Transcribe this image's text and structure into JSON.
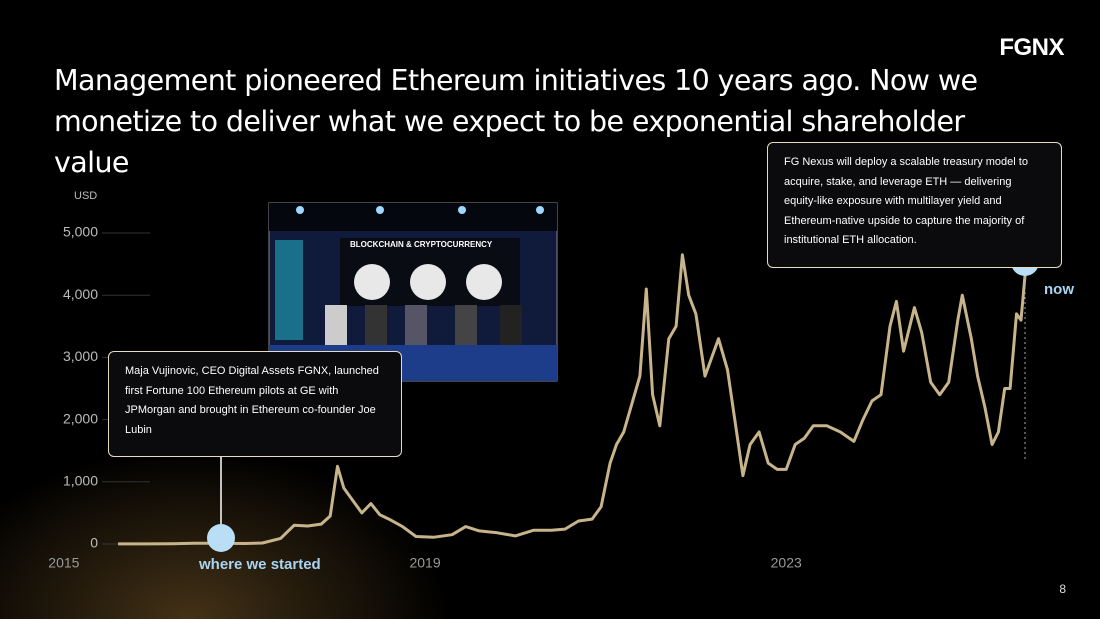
{
  "logo": "FGNX",
  "page_number": "8",
  "chart_data": {
    "type": "line",
    "title": "Management pioneered Ethereum initiatives 10 years ago. Now we monetize to deliver what we expect to be exponential shareholder value",
    "y_axis_label": "USD",
    "x": [
      2015.6,
      2015.9,
      2016.2,
      2016.45,
      2016.7,
      2017.0,
      2017.2,
      2017.4,
      2017.55,
      2017.7,
      2017.85,
      2017.95,
      2018.03,
      2018.1,
      2018.2,
      2018.3,
      2018.4,
      2018.5,
      2018.6,
      2018.75,
      2018.9,
      2019.1,
      2019.3,
      2019.45,
      2019.6,
      2019.8,
      2020.0,
      2020.2,
      2020.4,
      2020.55,
      2020.7,
      2020.85,
      2020.95,
      2021.05,
      2021.12,
      2021.2,
      2021.3,
      2021.38,
      2021.45,
      2021.52,
      2021.6,
      2021.7,
      2021.78,
      2021.85,
      2021.92,
      2022.0,
      2022.1,
      2022.25,
      2022.35,
      2022.45,
      2022.52,
      2022.6,
      2022.7,
      2022.8,
      2022.9,
      2023.0,
      2023.1,
      2023.2,
      2023.3,
      2023.45,
      2023.6,
      2023.75,
      2023.85,
      2023.95,
      2024.05,
      2024.15,
      2024.22,
      2024.3,
      2024.42,
      2024.5,
      2024.6,
      2024.7,
      2024.8,
      2024.9,
      2024.95,
      2025.05,
      2025.12,
      2025.2,
      2025.28,
      2025.35,
      2025.42,
      2025.48,
      2025.55,
      2025.6,
      2025.65
    ],
    "series": [
      {
        "name": "ETH",
        "color": "#c8b48a",
        "values": [
          1,
          1,
          5,
          13,
          12,
          8,
          16,
          90,
          300,
          290,
          320,
          450,
          1250,
          900,
          700,
          500,
          650,
          470,
          400,
          280,
          120,
          110,
          150,
          280,
          210,
          180,
          130,
          220,
          220,
          240,
          370,
          400,
          600,
          1300,
          1600,
          1800,
          2300,
          2700,
          4100,
          2400,
          1900,
          3300,
          3500,
          4650,
          4000,
          3700,
          2700,
          3300,
          2800,
          1800,
          1100,
          1600,
          1800,
          1300,
          1200,
          1200,
          1600,
          1700,
          1900,
          1900,
          1800,
          1650,
          2000,
          2300,
          2400,
          3500,
          3900,
          3100,
          3800,
          3400,
          2600,
          2400,
          2600,
          3600,
          4000,
          3300,
          2700,
          2200,
          1600,
          1800,
          2500,
          2500,
          3700,
          3600,
          4400
        ]
      }
    ],
    "xlim": [
      2015.4,
      2025.7
    ],
    "xticks": [
      2015,
      2019,
      2023
    ],
    "ylim": [
      0,
      5000
    ],
    "yticks": [
      0,
      {
        "value": 1000,
        "label": "1,000"
      },
      {
        "value": 2000,
        "label": "2,000"
      },
      {
        "value": 3000,
        "label": "3,000"
      },
      {
        "value": 4000,
        "label": "4,000"
      },
      {
        "value": 5000,
        "label": "5,000"
      }
    ],
    "grid": true,
    "annotations": [
      {
        "text": "Maja Vujinovic, CEO Digital Assets FGNX, launched first Fortune 100 Ethereum pilots at GE with JPMorgan and brought in Ethereum co-founder Joe Lubin",
        "marker_label": "where we started"
      },
      {
        "text": "FG Nexus will deploy a scalable treasury model to acquire, stake, and leverage ETH — delivering equity-like exposure with multilayer yield and Ethereum-native upside to capture the majority of institutional ETH allocation.",
        "marker_label": "now"
      }
    ],
    "photo_caption": "BLOCKCHAIN & CRYPTOCURRENCY"
  }
}
